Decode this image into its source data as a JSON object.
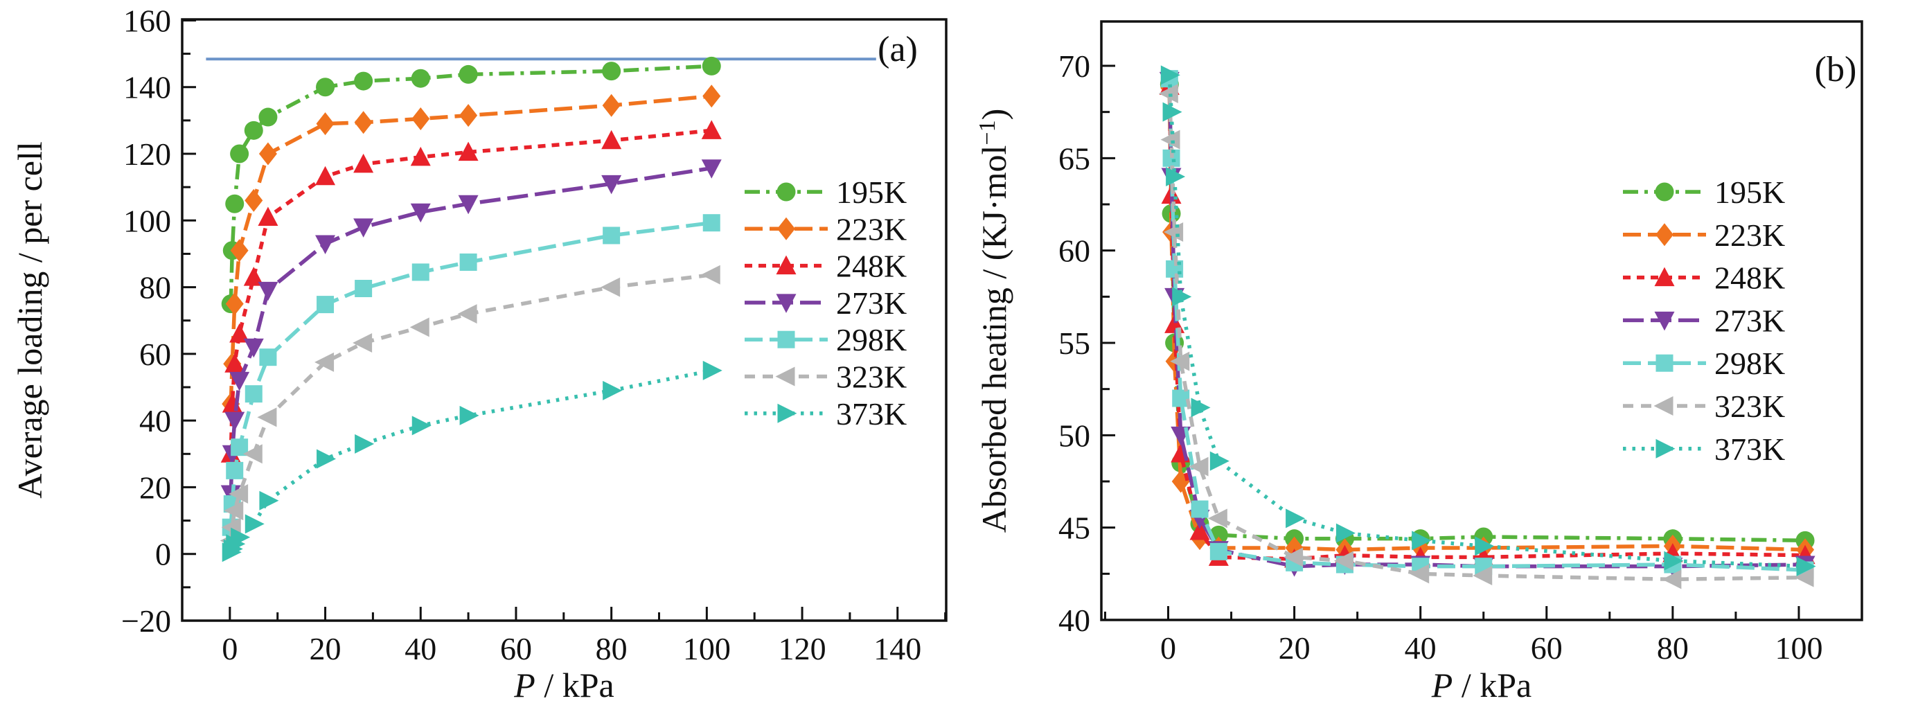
{
  "figure": {
    "panel_a_label": "(a)",
    "panel_b_label": "(b)",
    "legend_labels": [
      "195K",
      "223K",
      "248K",
      "273K",
      "298K",
      "323K",
      "373K"
    ]
  },
  "colors": {
    "axis": "#111111",
    "text": "#111111",
    "saturation_line": "#6b93c9",
    "series": {
      "195K": "#56b33c",
      "223K": "#f0731e",
      "248K": "#e8222a",
      "273K": "#7b3fa0",
      "298K": "#6fd4cf",
      "323K": "#b5b5b5",
      "373K": "#38bfae"
    }
  },
  "chart_data": [
    {
      "id": "a",
      "type": "line",
      "panel_label": "(a)",
      "xlabel": "P / kPa",
      "ylabel": "Average loading / per cell",
      "xlabel_parts": [
        {
          "t": "P",
          "italic": true
        },
        {
          "t": " / kPa"
        }
      ],
      "ylabel_parts": [
        {
          "t": "Average loading / per cell"
        }
      ],
      "xlim": [
        -10,
        150.2
      ],
      "ylim": [
        -20,
        160.3
      ],
      "xticks": [
        0,
        20,
        40,
        60,
        80,
        100,
        120,
        140
      ],
      "yticks": [
        -20,
        0,
        20,
        40,
        60,
        80,
        100,
        120,
        140,
        160
      ],
      "x_minor_step": 10,
      "y_minor_step": 10,
      "legend_position": "right-inside",
      "saturation_line": {
        "y": 148.4,
        "x_start": -5,
        "x_end": 135.5
      },
      "x": [
        0.2,
        0.5,
        1,
        2,
        5,
        8,
        20,
        28,
        40,
        50,
        80,
        101
      ],
      "series": [
        {
          "name": "195K",
          "marker": "circle",
          "dash": "dash-dot",
          "values": [
            75,
            91,
            105,
            120,
            127,
            131,
            140,
            141.8,
            142.6,
            143.8,
            144.8,
            146.3
          ]
        },
        {
          "name": "223K",
          "marker": "diamond",
          "dash": "dash",
          "values": [
            45,
            57,
            75,
            91,
            106,
            120,
            129,
            129.4,
            130.5,
            131.5,
            134.5,
            137.3
          ]
        },
        {
          "name": "248K",
          "marker": "triangle-up",
          "dash": "short-dash",
          "values": [
            30,
            45,
            57,
            66,
            83,
            101,
            113.2,
            116.9,
            119,
            120.5,
            124,
            127
          ]
        },
        {
          "name": "273K",
          "marker": "triangle-down",
          "dash": "long-dash",
          "values": [
            18,
            30,
            40,
            52,
            62,
            79,
            93,
            98,
            102.5,
            105,
            111,
            115.7
          ]
        },
        {
          "name": "298K",
          "marker": "square",
          "dash": "dash",
          "values": [
            8,
            15,
            25,
            32,
            48,
            59,
            74.8,
            79.6,
            84.5,
            87.5,
            95.5,
            99.3
          ]
        },
        {
          "name": "323K",
          "marker": "triangle-left",
          "dash": "med-dash",
          "values": [
            4,
            8,
            13,
            18,
            30,
            41,
            57.5,
            63.3,
            68,
            72,
            80,
            83.7
          ]
        },
        {
          "name": "373K",
          "marker": "triangle-right",
          "dash": "dot",
          "values": [
            0.5,
            1.5,
            3,
            5,
            9,
            16,
            28.5,
            33,
            38.5,
            41.5,
            49,
            55
          ]
        }
      ]
    },
    {
      "id": "b",
      "type": "line",
      "panel_label": "(b)",
      "xlabel": "P / kPa",
      "ylabel": "Absorbed heating / (KJ·mol−1)",
      "xlabel_parts": [
        {
          "t": "P",
          "italic": true
        },
        {
          "t": " / kPa"
        }
      ],
      "ylabel_parts": [
        {
          "t": "Absorbed heating / (KJ·mol"
        },
        {
          "t": "−1",
          "sup": true
        },
        {
          "t": ")"
        }
      ],
      "xlim": [
        -10.6,
        110
      ],
      "ylim": [
        40,
        72.4
      ],
      "xticks": [
        0,
        20,
        40,
        60,
        80,
        100
      ],
      "yticks": [
        40,
        45,
        50,
        55,
        60,
        65,
        70
      ],
      "x_minor_step": 10,
      "y_minor_step": 2.5,
      "legend_position": "right-inside",
      "x": [
        0.2,
        0.5,
        1,
        2,
        5,
        8,
        20,
        28,
        40,
        50,
        80,
        101
      ],
      "series": [
        {
          "name": "195K",
          "marker": "circle",
          "dash": "dash-dot",
          "values": [
            69,
            62,
            55,
            48.5,
            45.2,
            44.6,
            44.4,
            44.4,
            44.4,
            44.5,
            44.4,
            44.3
          ]
        },
        {
          "name": "223K",
          "marker": "diamond",
          "dash": "dash",
          "values": [
            68.8,
            61,
            54,
            47.5,
            44.4,
            43.9,
            43.9,
            43.8,
            43.9,
            43.9,
            44,
            43.8
          ]
        },
        {
          "name": "248K",
          "marker": "triangle-up",
          "dash": "short-dash",
          "values": [
            68.9,
            63,
            56,
            49,
            44.8,
            43.4,
            43.3,
            43.5,
            43.4,
            43.4,
            43.6,
            43.5
          ]
        },
        {
          "name": "273K",
          "marker": "triangle-down",
          "dash": "long-dash",
          "values": [
            69.2,
            64,
            57.5,
            50,
            45.5,
            43.8,
            42.9,
            43,
            43,
            42.9,
            42.9,
            43
          ]
        },
        {
          "name": "298K",
          "marker": "square",
          "dash": "dash",
          "values": [
            69.3,
            65,
            59,
            52,
            46,
            43.7,
            43.1,
            43,
            42.9,
            42.9,
            43,
            42.7
          ]
        },
        {
          "name": "323K",
          "marker": "triangle-left",
          "dash": "med-dash",
          "values": [
            68.5,
            66,
            61,
            54,
            48.3,
            45.5,
            43.4,
            43.2,
            42.5,
            42.4,
            42.2,
            42.3
          ]
        },
        {
          "name": "373K",
          "marker": "triangle-right",
          "dash": "dot",
          "values": [
            69.5,
            67.5,
            64,
            57.5,
            51.5,
            48.6,
            45.5,
            44.7,
            44.3,
            44,
            43.2,
            42.9
          ]
        }
      ]
    }
  ]
}
